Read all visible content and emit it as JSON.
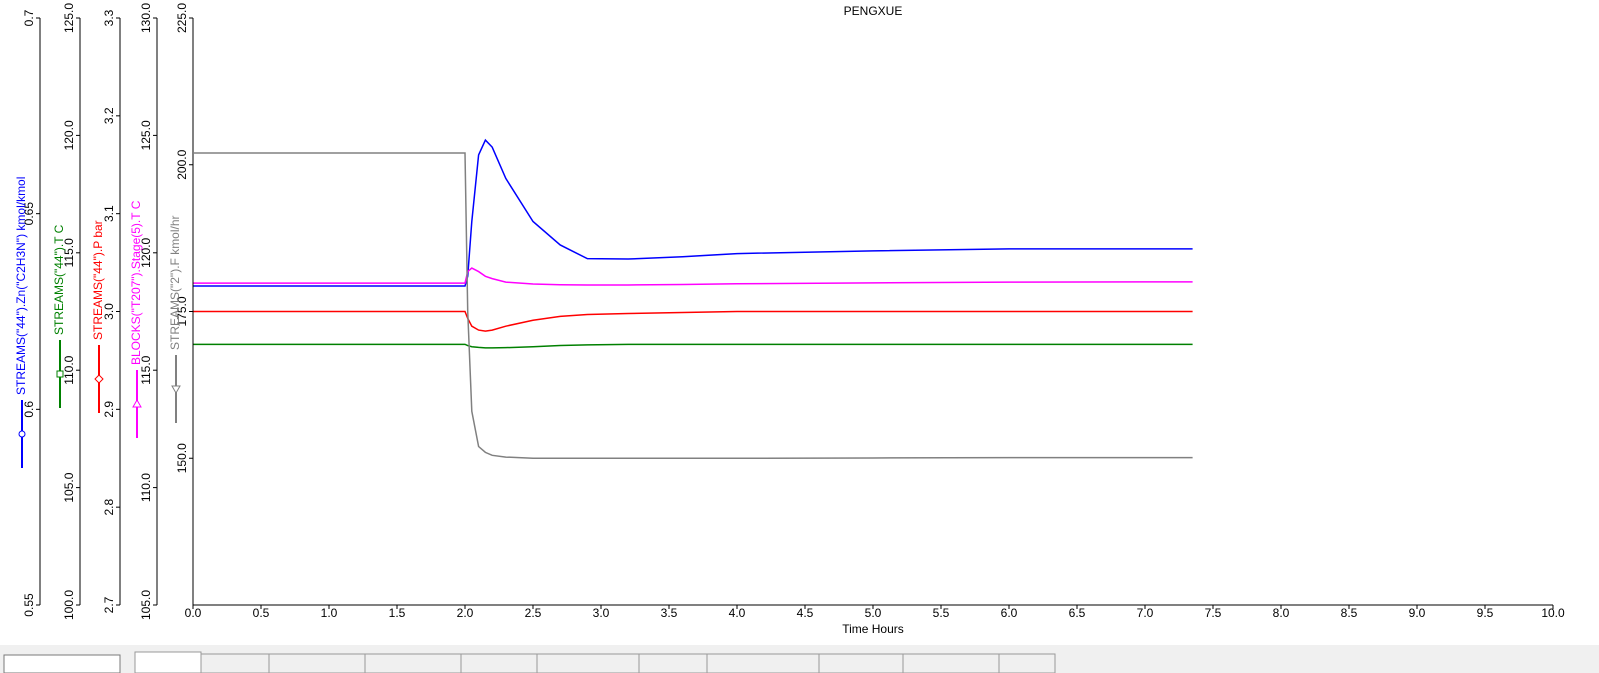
{
  "chart_data": {
    "type": "line",
    "title": "PENGXUE",
    "xlabel": "Time Hours",
    "x": [
      0,
      2.0,
      2.02,
      2.05,
      2.1,
      2.15,
      2.2,
      2.3,
      2.5,
      2.7,
      2.9,
      3.2,
      3.6,
      4.0,
      5.0,
      6.0,
      7.0,
      7.35
    ],
    "xlim": [
      0,
      10
    ],
    "xticks": [
      {
        "value": 0,
        "label": "0.0"
      },
      0.5,
      {
        "value": 1,
        "label": "1.0"
      },
      1.5,
      {
        "value": 2,
        "label": "2.0"
      },
      2.5,
      {
        "value": 3,
        "label": "3.0"
      },
      3.5,
      {
        "value": 4,
        "label": "4.0"
      },
      4.5,
      {
        "value": 5,
        "label": "5.0"
      },
      5.5,
      {
        "value": 6,
        "label": "6.0"
      },
      6.5,
      {
        "value": 7,
        "label": "7.0"
      },
      7.5,
      {
        "value": 8,
        "label": "8.0"
      },
      8.5,
      {
        "value": 9,
        "label": "9.0"
      },
      9.5,
      {
        "value": 10,
        "label": "10.0"
      }
    ],
    "series": [
      {
        "name": "STREAMS(\"44\").Zn(\"C2H3N\") kmol/kmol",
        "color": "#0000ff",
        "marker": "circle",
        "values": [
          0.6315,
          0.6315,
          0.634,
          0.648,
          0.665,
          0.6688,
          0.667,
          0.659,
          0.648,
          0.642,
          0.6385,
          0.6384,
          0.639,
          0.6398,
          0.6405,
          0.641,
          0.641,
          0.641
        ],
        "ylim": [
          0.55,
          0.7
        ],
        "yticks": [
          0.55,
          0.6,
          0.65,
          0.7
        ]
      },
      {
        "name": "STREAMS(\"44\").T C",
        "color": "#008000",
        "marker": "square",
        "values": [
          111.1,
          111.1,
          111.05,
          111.0,
          110.97,
          110.95,
          110.95,
          110.96,
          111.0,
          111.05,
          111.08,
          111.1,
          111.1,
          111.1,
          111.1,
          111.1,
          111.1,
          111.1
        ],
        "ylim": [
          100,
          125
        ],
        "yticks": [
          {
            "value": 100,
            "label": "100.0"
          },
          {
            "value": 105,
            "label": "105.0"
          },
          {
            "value": 110,
            "label": "110.0"
          },
          {
            "value": 115,
            "label": "115.0"
          },
          {
            "value": 120,
            "label": "120.0"
          },
          {
            "value": 125,
            "label": "125.0"
          }
        ]
      },
      {
        "name": "STREAMS(\"44\").P bar",
        "color": "#ff0000",
        "marker": "diamond",
        "values": [
          3.0,
          3.0,
          2.993,
          2.985,
          2.981,
          2.98,
          2.981,
          2.985,
          2.991,
          2.995,
          2.997,
          2.998,
          2.999,
          3.0,
          3.0,
          3.0,
          3.0,
          3.0
        ],
        "ylim": [
          2.7,
          3.3
        ],
        "yticks": [
          2.7,
          2.8,
          2.9,
          {
            "value": 3.0,
            "label": "3.0"
          },
          3.1,
          3.2,
          3.3
        ]
      },
      {
        "name": "BLOCKS(\"T207\").Stage(5).T C",
        "color": "#ff00ff",
        "marker": "triangle",
        "values": [
          118.71,
          118.71,
          119.2,
          119.35,
          119.2,
          119.0,
          118.9,
          118.75,
          118.67,
          118.64,
          118.63,
          118.63,
          118.65,
          118.68,
          118.72,
          118.75,
          118.76,
          118.76
        ],
        "ylim": [
          105,
          130
        ],
        "yticks": [
          {
            "value": 105,
            "label": "105.0"
          },
          {
            "value": 110,
            "label": "110.0"
          },
          {
            "value": 115,
            "label": "115.0"
          },
          {
            "value": 120,
            "label": "120.0"
          },
          {
            "value": 125,
            "label": "125.0"
          },
          {
            "value": 130,
            "label": "130.0"
          }
        ]
      },
      {
        "name": "STREAMS(\"2\").F kmol/hr",
        "color": "#808080",
        "marker": "triangle-down",
        "values": [
          202,
          202,
          175,
          158,
          152,
          151,
          150.5,
          150.2,
          150,
          150,
          150,
          150,
          150,
          150,
          150.05,
          150.1,
          150.1,
          150.1
        ],
        "ylim": [
          125,
          225
        ],
        "yticks": [
          {
            "value": 150,
            "label": "150.0"
          },
          {
            "value": 175,
            "label": "175.0"
          },
          {
            "value": 200,
            "label": "200.0"
          },
          {
            "value": 225,
            "label": "225.0"
          }
        ]
      }
    ]
  }
}
